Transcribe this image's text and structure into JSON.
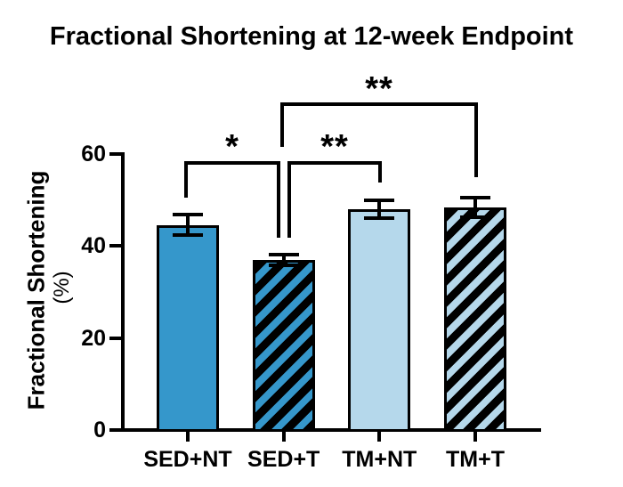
{
  "title": "Fractional Shortening at 12-week Endpoint",
  "colors": {
    "dark_blue": "#3597CB",
    "light_blue": "#B5D8EB",
    "axis_black": "#000000",
    "background": "#FFFFFF"
  },
  "chart_data": {
    "type": "bar",
    "title": "Fractional Shortening at 12-week Endpoint",
    "ylabel": "Fractional Shortening",
    "ylabel_unit": "(%)",
    "xlabel": "",
    "ylim": [
      0,
      60
    ],
    "yticks": [
      0,
      20,
      40,
      60
    ],
    "grid": false,
    "legend": "none",
    "categories": [
      "SED+NT",
      "SED+T",
      "TM+NT",
      "TM+T"
    ],
    "values": [
      44.6,
      37.0,
      48.0,
      48.4
    ],
    "errors": [
      2.2,
      1.2,
      1.9,
      2.2
    ],
    "error_style": "bar-with-caps",
    "bar_styles": [
      {
        "fill": "#3597CB",
        "hatch": false
      },
      {
        "fill": "#3597CB",
        "hatch": true
      },
      {
        "fill": "#B5D8EB",
        "hatch": false
      },
      {
        "fill": "#B5D8EB",
        "hatch": true
      }
    ],
    "significance": [
      {
        "between": [
          "SED+NT",
          "SED+T"
        ],
        "label": "*"
      },
      {
        "between": [
          "SED+T",
          "TM+NT"
        ],
        "label": "**"
      },
      {
        "between": [
          "SED+T",
          "TM+T"
        ],
        "label": "**"
      }
    ]
  }
}
